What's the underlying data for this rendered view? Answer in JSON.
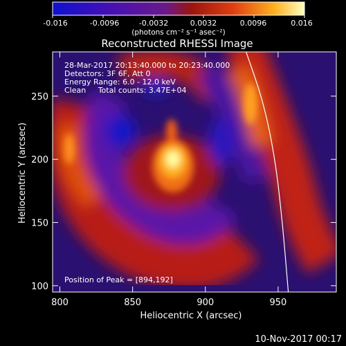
{
  "colorbar": {
    "ticks": [
      "-0.016",
      "-0.0096",
      "-0.0032",
      "0.0032",
      "0.0096",
      "0.016"
    ],
    "unit_label": "(photons cm⁻² s⁻¹ asec⁻²)"
  },
  "chart_data": {
    "type": "heatmap",
    "title": "Reconstructed RHESSI Image",
    "xlabel": "Heliocentric X (arcsec)",
    "ylabel": "Heliocentric Y (arcsec)",
    "xlim": [
      795,
      990
    ],
    "ylim": [
      95,
      285
    ],
    "xticks": [
      800,
      850,
      900,
      950
    ],
    "yticks": [
      100,
      150,
      200,
      250
    ],
    "colorbar_range": [
      -0.016,
      0.016
    ],
    "colormap": "blue-purple-red-yellow-white",
    "info_lines": [
      "28-Mar-2017 20:13:40.000 to 20:23:40.000",
      "Detectors: 3F 6F, Att 0",
      "Energy Range: 6.0 - 12.0 keV",
      "Clean     Total counts: 3.47E+04"
    ],
    "peak_text": "Position of Peak = [894,192]",
    "peak": {
      "x": 894,
      "y": 192
    },
    "limb_curve": [
      [
        928,
        285
      ],
      [
        940,
        245
      ],
      [
        948,
        200
      ],
      [
        953,
        150
      ],
      [
        957,
        95
      ]
    ]
  },
  "footer": {
    "timestamp": "10-Nov-2017 00:17"
  }
}
